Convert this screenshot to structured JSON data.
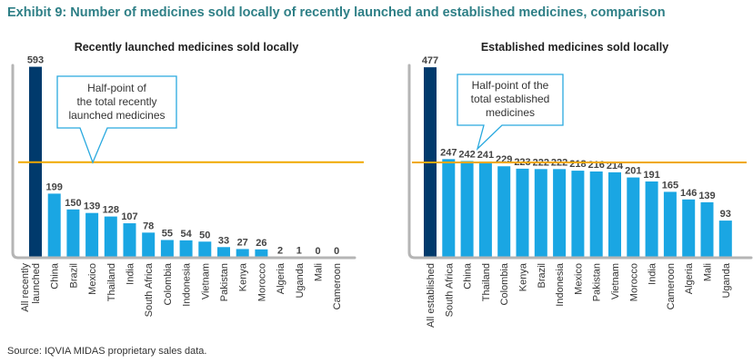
{
  "title": "Exhibit 9: Number of medicines sold locally of recently launched and established medicines, comparison",
  "source": "Source: IQVIA MIDAS proprietary sales data.",
  "colors": {
    "highlight": "#003a6c",
    "bar": "#1aa6e3",
    "halfline": "#f0a800",
    "title": "#2e7f86"
  },
  "chart_data": [
    {
      "type": "bar",
      "title": "Recently launched medicines sold locally",
      "categories": [
        "All recently launched",
        "China",
        "Brazil",
        "Mexico",
        "Thailand",
        "India",
        "South Africa",
        "Colombia",
        "Indonesia",
        "Vietnam",
        "Pakistan",
        "Kenya",
        "Morocco",
        "Algeria",
        "Uganda",
        "Mali",
        "Cameroon"
      ],
      "tick_labels": [
        [
          "All recently",
          "launched"
        ],
        [
          "China"
        ],
        [
          "Brazil"
        ],
        [
          "Mexico"
        ],
        [
          "Thailand"
        ],
        [
          "India"
        ],
        [
          "South Africa"
        ],
        [
          "Colombia"
        ],
        [
          "Indonesia"
        ],
        [
          "Vietnam"
        ],
        [
          "Pakistan"
        ],
        [
          "Kenya"
        ],
        [
          "Morocco"
        ],
        [
          "Algeria"
        ],
        [
          "Uganda"
        ],
        [
          "Mali"
        ],
        [
          "Cameroon"
        ]
      ],
      "values": [
        593,
        199,
        150,
        139,
        128,
        107,
        78,
        55,
        54,
        50,
        33,
        27,
        26,
        2,
        1,
        0,
        0
      ],
      "highlight_index": 0,
      "reference_line": {
        "value": 296.5,
        "label": [
          "Half-point of",
          "the total recently",
          "launched medicines"
        ]
      },
      "ylim": [
        0,
        620
      ],
      "grid": false
    },
    {
      "type": "bar",
      "title": "Established medicines sold locally",
      "categories": [
        "All established",
        "South Africa",
        "China",
        "Thailand",
        "Colombia",
        "Kenya",
        "Brazil",
        "Indonesia",
        "Mexico",
        "Pakistan",
        "Vietnam",
        "Morocco",
        "India",
        "Cameroon",
        "Algeria",
        "Mali",
        "Uganda"
      ],
      "tick_labels": [
        [
          "All established"
        ],
        [
          "South Africa"
        ],
        [
          "China"
        ],
        [
          "Thailand"
        ],
        [
          "Colombia"
        ],
        [
          "Kenya"
        ],
        [
          "Brazil"
        ],
        [
          "Indonesia"
        ],
        [
          "Mexico"
        ],
        [
          "Pakistan"
        ],
        [
          "Vietnam"
        ],
        [
          "Morocco"
        ],
        [
          "India"
        ],
        [
          "Cameroon"
        ],
        [
          "Algeria"
        ],
        [
          "Mali"
        ],
        [
          "Uganda"
        ]
      ],
      "values": [
        477,
        247,
        242,
        241,
        229,
        223,
        222,
        222,
        218,
        216,
        214,
        201,
        191,
        165,
        146,
        139,
        93
      ],
      "highlight_index": 0,
      "reference_line": {
        "value": 238.5,
        "label": [
          "Half-point of the",
          "total established",
          "medicines"
        ]
      },
      "ylim": [
        0,
        500
      ],
      "grid": false
    }
  ]
}
